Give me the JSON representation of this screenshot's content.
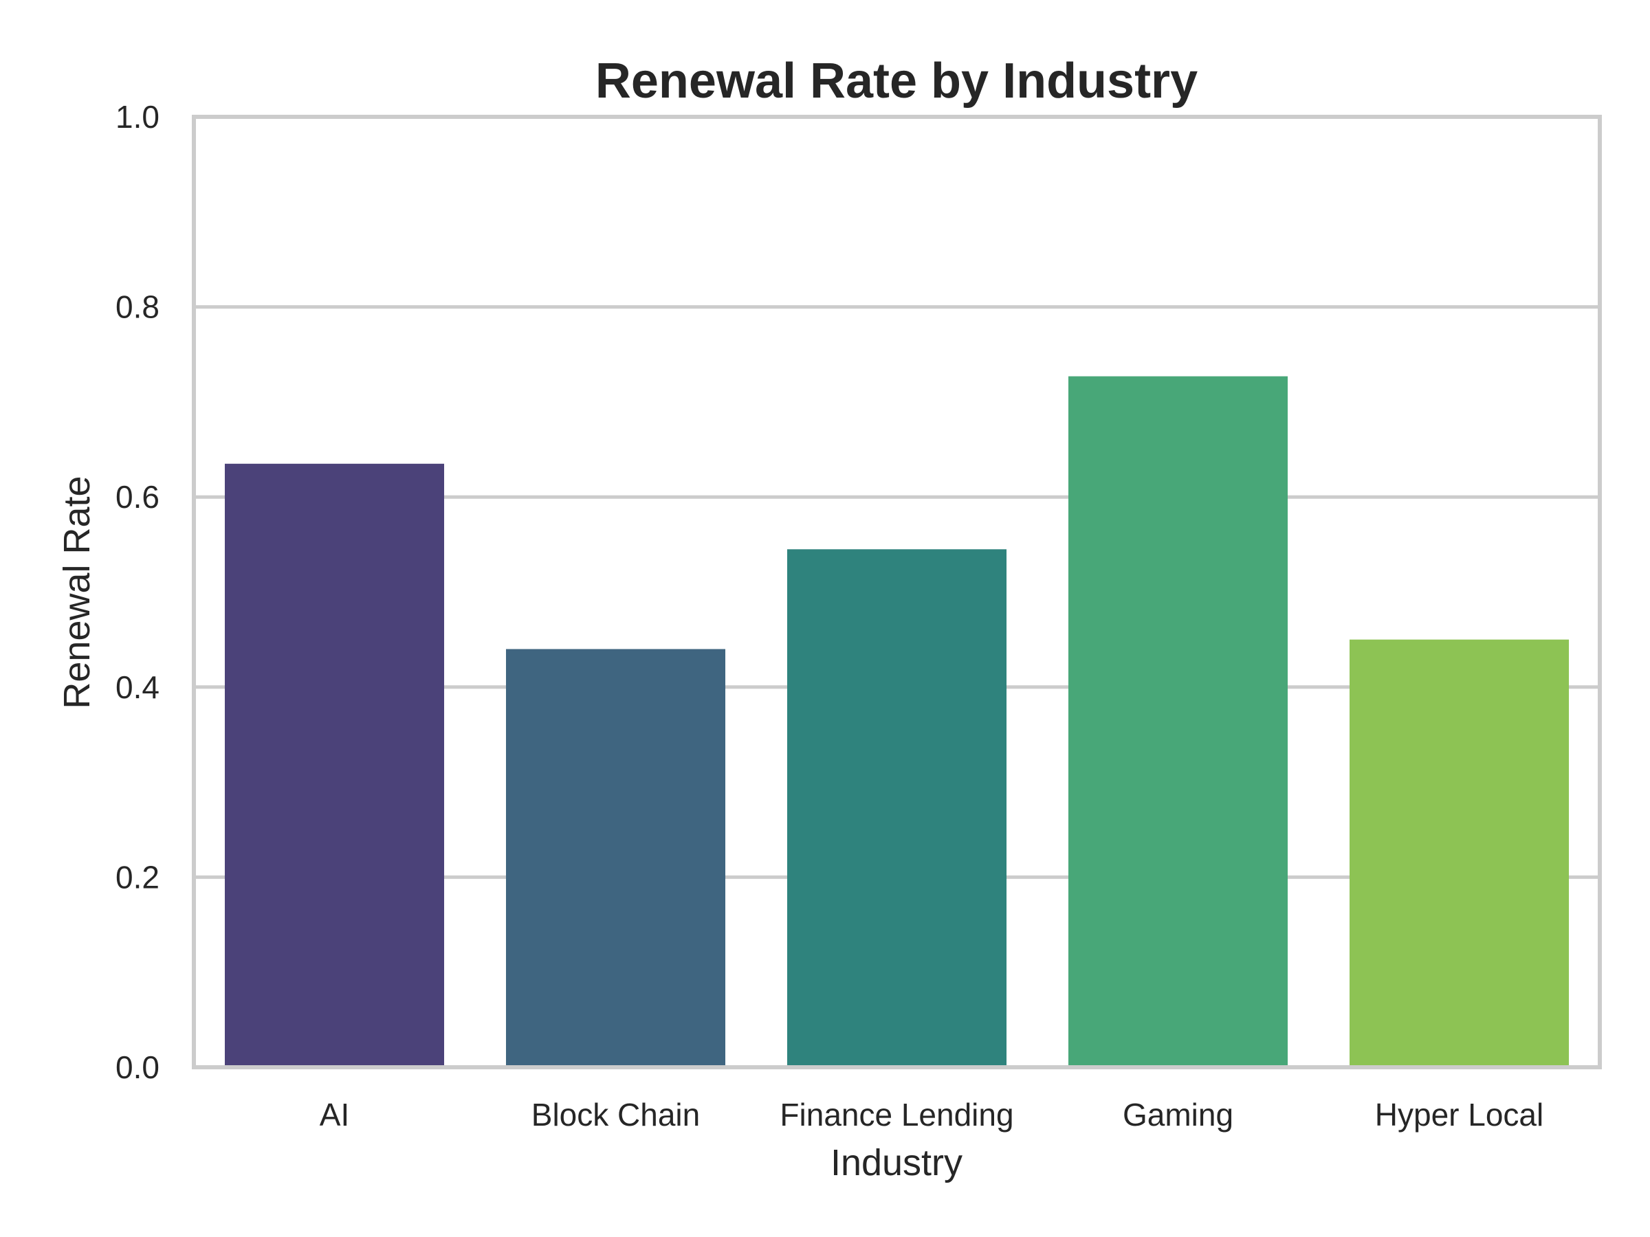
{
  "chart_data": {
    "type": "bar",
    "title": "Renewal Rate by Industry",
    "xlabel": "Industry",
    "ylabel": "Renewal Rate",
    "categories": [
      "AI",
      "Block Chain",
      "Finance Lending",
      "Gaming",
      "Hyper Local"
    ],
    "values": [
      0.635,
      0.44,
      0.545,
      0.727,
      0.45
    ],
    "colors": [
      "#4b4279",
      "#3f6580",
      "#2f837d",
      "#48a778",
      "#8dc354"
    ],
    "ylim": [
      0,
      1.0
    ],
    "yticks": [
      0.0,
      0.2,
      0.4,
      0.6,
      0.8,
      1.0
    ],
    "ytick_labels": [
      "0.0",
      "0.2",
      "0.4",
      "0.6",
      "0.8",
      "1.0"
    ],
    "grid": "horizontal",
    "legend": "none"
  }
}
